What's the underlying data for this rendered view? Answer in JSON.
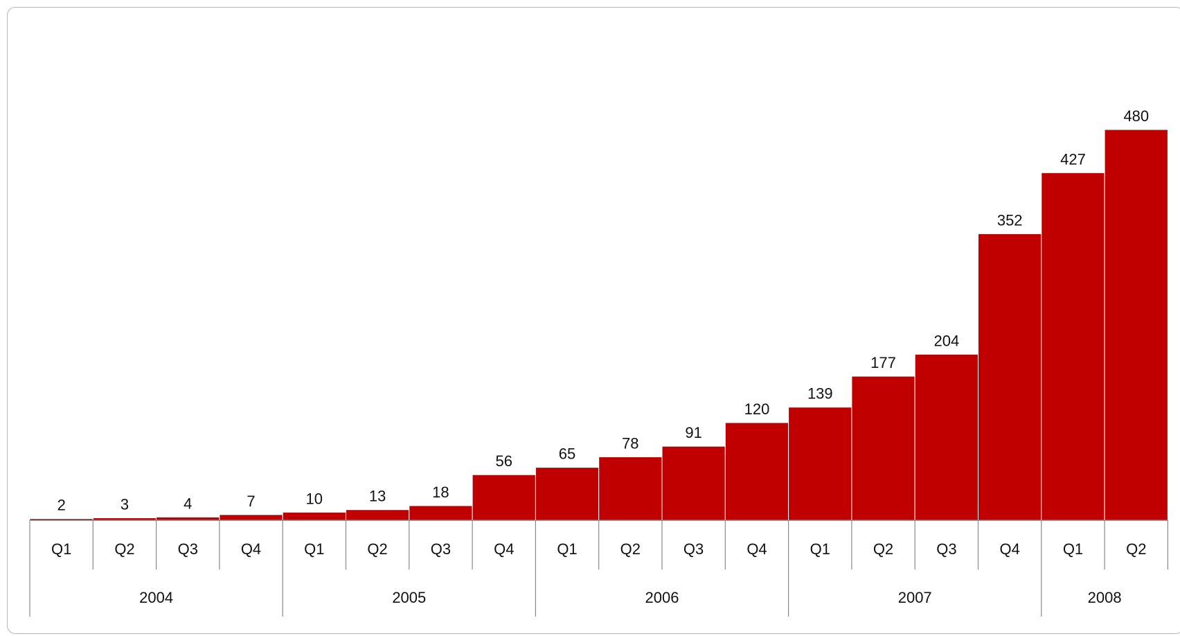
{
  "chart_data": {
    "type": "bar",
    "title": "",
    "xlabel": "",
    "ylabel": "",
    "ylim": [
      0,
      480
    ],
    "grid": false,
    "legend": "none",
    "bar_color": "#c00000",
    "categories": [
      "Q1",
      "Q2",
      "Q3",
      "Q4",
      "Q1",
      "Q2",
      "Q3",
      "Q4",
      "Q1",
      "Q2",
      "Q3",
      "Q4",
      "Q1",
      "Q2",
      "Q3",
      "Q4",
      "Q1",
      "Q2"
    ],
    "years": [
      {
        "label": "2004",
        "quarters": 4
      },
      {
        "label": "2005",
        "quarters": 4
      },
      {
        "label": "2006",
        "quarters": 4
      },
      {
        "label": "2007",
        "quarters": 4
      },
      {
        "label": "2008",
        "quarters": 2
      }
    ],
    "values": [
      2,
      3,
      4,
      7,
      10,
      13,
      18,
      56,
      65,
      78,
      91,
      120,
      139,
      177,
      204,
      352,
      427,
      480
    ],
    "value_labels": [
      "2",
      "3",
      "4",
      "7",
      "10",
      "13",
      "18",
      "56",
      "65",
      "78",
      "91",
      "120",
      "139",
      "177",
      "204",
      "352",
      "427",
      "480"
    ]
  }
}
